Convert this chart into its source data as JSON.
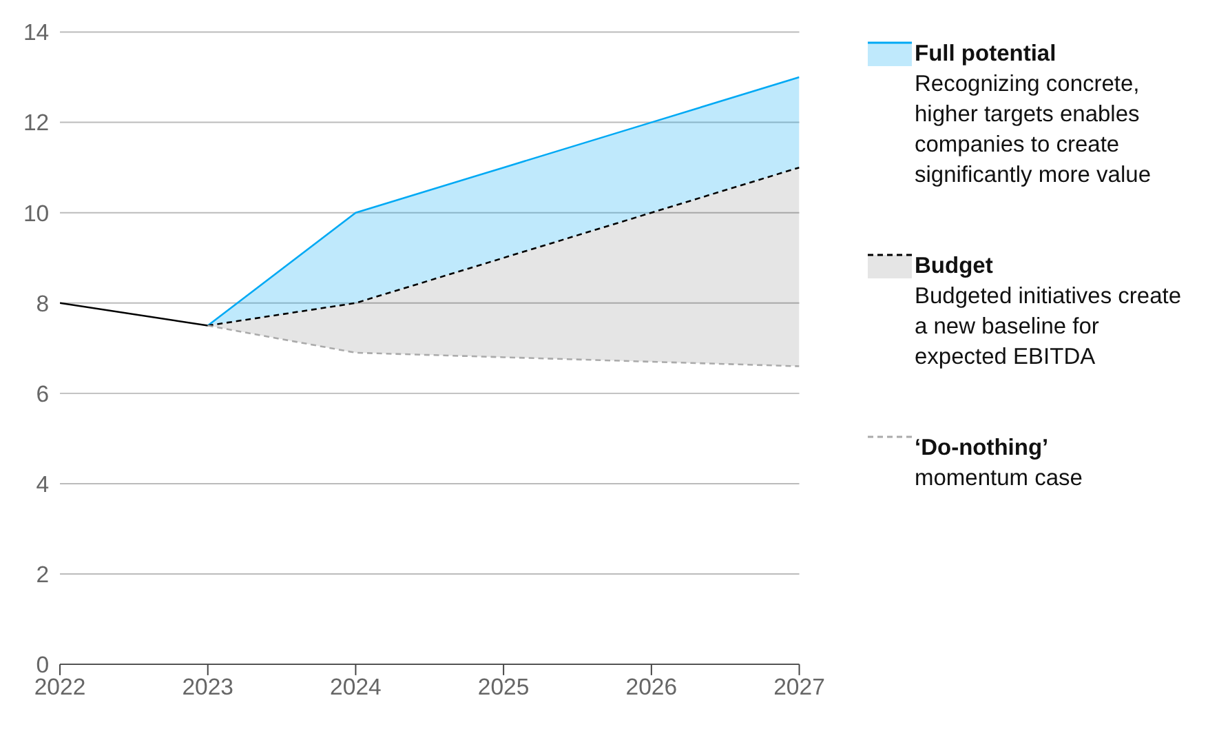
{
  "chart_data": {
    "type": "line",
    "x": [
      2022,
      2023,
      2024,
      2025,
      2026,
      2027
    ],
    "xlim": [
      2022,
      2027
    ],
    "xticks": [
      2022,
      2023,
      2024,
      2025,
      2026,
      2027
    ],
    "ylim": [
      0,
      14
    ],
    "yticks": [
      0,
      2,
      4,
      6,
      8,
      10,
      12,
      14
    ],
    "grid": "y",
    "legend": "right",
    "series": [
      {
        "color": "#000000",
        "values": [
          8,
          7.5,
          null,
          null,
          null,
          null
        ],
        "line_style": "solid"
      },
      {
        "type": "area",
        "name": "Full potential",
        "color": "#00a9f4",
        "values": [
          null,
          7.5,
          10,
          11,
          12,
          13
        ],
        "line_style": "solid"
      },
      {
        "type": "area",
        "name": "Budget",
        "color": "#000000",
        "values": [
          null,
          7.5,
          8,
          9,
          10,
          11
        ],
        "line_style": "dashed"
      },
      {
        "name": "‘Do-nothing’",
        "color": "#aaaaaa",
        "values": [
          null,
          7.5,
          6.9,
          6.8,
          6.7,
          6.6
        ],
        "line_style": "dashed"
      }
    ],
    "annotations": [
      "Recognizing concrete, higher targets enables companies to create significantly more value",
      "Budgeted initiatives create a new baseline for expected EBITDA",
      "momentum case"
    ]
  }
}
